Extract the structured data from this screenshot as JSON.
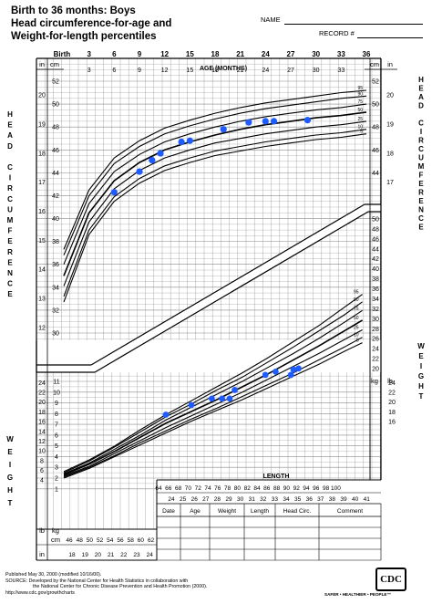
{
  "header": {
    "title_lines": [
      "Birth to 36 months: Boys",
      "Head circumference-for-age and",
      "Weight-for-length percentiles"
    ],
    "name_label": "NAME",
    "record_label": "RECORD #"
  },
  "axes": {
    "age_top_labels": [
      "Birth",
      "3",
      "6",
      "9",
      "12",
      "15",
      "18",
      "21",
      "24",
      "27",
      "30",
      "33",
      "36"
    ],
    "age_inner_labels": [
      "3",
      "6",
      "9",
      "12",
      "15",
      "18",
      "21",
      "24",
      "27",
      "30",
      "33"
    ],
    "age_title": "AGE (MONTHS)",
    "hc_cm_labels": [
      "52",
      "50",
      "48",
      "46",
      "44",
      "42",
      "40",
      "38",
      "36",
      "34",
      "32",
      "30"
    ],
    "hc_in_labels": [
      "20",
      "19",
      "18",
      "17",
      "16",
      "15",
      "14",
      "13",
      "12"
    ],
    "hc_right_cm_labels": [
      "52",
      "50",
      "48",
      "46",
      "44"
    ],
    "hc_right_in_labels": [
      "20",
      "19",
      "18",
      "17"
    ],
    "wt_right_kg_labels": [
      "50",
      "48",
      "46",
      "44",
      "42",
      "40",
      "38",
      "36",
      "34",
      "32",
      "30",
      "28",
      "26",
      "24",
      "22",
      "20"
    ],
    "wt_right_lb_labels": [
      "24",
      "22",
      "20",
      "18",
      "16"
    ],
    "wt_kg_labels": [
      "11",
      "10",
      "9",
      "8",
      "7",
      "6",
      "5",
      "4",
      "3",
      "2",
      "1"
    ],
    "wt_lb_labels": [
      "24",
      "22",
      "20",
      "18",
      "16",
      "14",
      "12",
      "10",
      "8",
      "6",
      "4"
    ],
    "length_cm_labels": [
      "64",
      "66",
      "68",
      "70",
      "72",
      "74",
      "76",
      "78",
      "80",
      "82",
      "84",
      "86",
      "88",
      "90",
      "92",
      "94",
      "96",
      "98",
      "100"
    ],
    "length_in_labels": [
      "24",
      "25",
      "26",
      "27",
      "28",
      "29",
      "30",
      "31",
      "32",
      "33",
      "34",
      "35",
      "36",
      "37",
      "38",
      "39",
      "40",
      "41"
    ],
    "length_title": "LENGTH",
    "bottom_cm_labels": [
      "46",
      "48",
      "50",
      "52",
      "54",
      "56",
      "58",
      "60",
      "62"
    ],
    "bottom_in_labels": [
      "18",
      "19",
      "20",
      "21",
      "22",
      "23",
      "24"
    ],
    "unit_in": "in",
    "unit_cm": "cm",
    "unit_kg": "kg",
    "unit_lb": "lb",
    "side_hc_left": "HEAD CIRCUMFERENCE",
    "side_hc_right": "HEAD CIRCUMFERENCE",
    "side_wt_left": "WEIGHT",
    "side_wt_right": "WEIGHT"
  },
  "table": {
    "headers": [
      "Date",
      "Age",
      "Weight",
      "Length",
      "Head Circ.",
      "Comment"
    ]
  },
  "footer": {
    "lines": [
      "Published May 30, 2000 (modified 10/16/00).",
      "SOURCE: Developed by the National Center for Health Statistics in collaboration with",
      "the National Center for Chronic Disease Prevention and Health Promotion (2000).",
      "http://www.cdc.gov/growthcharts"
    ],
    "logo_text": "CDC",
    "tagline": "SAFER • HEALTHIER • PEOPLE™"
  },
  "colors": {
    "point": "#1f5cff",
    "grid": "#8a8a8a",
    "curve": "#000000"
  },
  "chart_data": [
    {
      "type": "line",
      "title": "Head circumference-for-age",
      "xlabel": "AGE (MONTHS)",
      "ylabel": "HEAD CIRCUMFERENCE",
      "xlim": [
        0,
        36
      ],
      "ylim": [
        30,
        53
      ],
      "x": [
        0,
        3,
        6,
        9,
        12,
        15,
        18,
        21,
        24,
        27,
        30,
        33,
        36
      ],
      "series": [
        {
          "name": "95",
          "values": [
            37.3,
            42.5,
            45.3,
            46.8,
            47.9,
            48.6,
            49.2,
            49.7,
            50.1,
            50.4,
            50.7,
            51.0,
            51.2
          ]
        },
        {
          "name": "90",
          "values": [
            36.8,
            42.0,
            44.8,
            46.3,
            47.4,
            48.1,
            48.7,
            49.2,
            49.6,
            49.9,
            50.2,
            50.5,
            50.7
          ]
        },
        {
          "name": "75",
          "values": [
            36.0,
            41.3,
            44.1,
            45.6,
            46.7,
            47.4,
            48.0,
            48.5,
            48.9,
            49.2,
            49.5,
            49.7,
            50.0
          ]
        },
        {
          "name": "50",
          "values": [
            35.0,
            40.5,
            43.3,
            44.9,
            46.0,
            46.7,
            47.3,
            47.8,
            48.2,
            48.5,
            48.8,
            49.0,
            49.3
          ]
        },
        {
          "name": "25",
          "values": [
            34.1,
            39.7,
            42.6,
            44.2,
            45.3,
            46.0,
            46.6,
            47.0,
            47.4,
            47.7,
            48.0,
            48.2,
            48.5
          ]
        },
        {
          "name": "10",
          "values": [
            33.2,
            39.0,
            41.9,
            43.5,
            44.6,
            45.3,
            45.9,
            46.3,
            46.7,
            47.0,
            47.3,
            47.5,
            47.8
          ]
        },
        {
          "name": "5",
          "values": [
            32.7,
            38.6,
            41.5,
            43.1,
            44.2,
            44.9,
            45.5,
            45.9,
            46.3,
            46.6,
            46.9,
            47.1,
            47.4
          ]
        }
      ],
      "points": [
        {
          "x": 6,
          "y": 42.3
        },
        {
          "x": 9,
          "y": 44.1
        },
        {
          "x": 10.5,
          "y": 45.1
        },
        {
          "x": 11.5,
          "y": 45.7
        },
        {
          "x": 14,
          "y": 46.7
        },
        {
          "x": 15,
          "y": 46.8
        },
        {
          "x": 19,
          "y": 47.8
        },
        {
          "x": 22,
          "y": 48.4
        },
        {
          "x": 24,
          "y": 48.5
        },
        {
          "x": 25,
          "y": 48.5
        },
        {
          "x": 29,
          "y": 48.6
        }
      ]
    },
    {
      "type": "line",
      "title": "Weight-for-length",
      "xlabel": "LENGTH",
      "ylabel": "WEIGHT",
      "xlim": [
        45,
        103.5
      ],
      "ylim": [
        1.2,
        26
      ],
      "x": [
        45,
        50,
        55,
        60,
        65,
        70,
        75,
        80,
        85,
        90,
        95,
        100,
        103.5
      ],
      "series": [
        {
          "name": "95",
          "values": [
            2.6,
            3.7,
            5.0,
            6.5,
            7.9,
            9.2,
            10.5,
            11.8,
            13.2,
            14.7,
            16.2,
            17.9,
            19.1
          ]
        },
        {
          "name": "90",
          "values": [
            2.5,
            3.6,
            4.9,
            6.3,
            7.7,
            8.9,
            10.2,
            11.4,
            12.8,
            14.2,
            15.7,
            17.2,
            18.4
          ]
        },
        {
          "name": "75",
          "values": [
            2.4,
            3.4,
            4.7,
            6.0,
            7.4,
            8.6,
            9.8,
            11.0,
            12.3,
            13.6,
            15.0,
            16.5,
            17.6
          ]
        },
        {
          "name": "50",
          "values": [
            2.3,
            3.3,
            4.5,
            5.8,
            7.1,
            8.2,
            9.3,
            10.5,
            11.7,
            13.0,
            14.3,
            15.7,
            16.7
          ]
        },
        {
          "name": "25",
          "values": [
            2.2,
            3.1,
            4.3,
            5.5,
            6.7,
            7.8,
            8.9,
            10.0,
            11.2,
            12.4,
            13.6,
            14.9,
            15.8
          ]
        },
        {
          "name": "10",
          "values": [
            2.1,
            3.0,
            4.1,
            5.3,
            6.4,
            7.5,
            8.5,
            9.6,
            10.7,
            11.8,
            13.0,
            14.2,
            15.1
          ]
        },
        {
          "name": "5",
          "values": [
            2.0,
            2.9,
            4.0,
            5.1,
            6.2,
            7.3,
            8.3,
            9.3,
            10.4,
            11.5,
            12.6,
            13.8,
            14.6
          ]
        }
      ],
      "points": [
        {
          "x": 65,
          "y": 7.9
        },
        {
          "x": 70,
          "y": 8.8
        },
        {
          "x": 74,
          "y": 9.4
        },
        {
          "x": 76,
          "y": 9.4
        },
        {
          "x": 77.5,
          "y": 9.4
        },
        {
          "x": 78.5,
          "y": 10.2
        },
        {
          "x": 84.5,
          "y": 11.6
        },
        {
          "x": 86.5,
          "y": 11.9
        },
        {
          "x": 89.5,
          "y": 11.6
        },
        {
          "x": 90,
          "y": 12.1
        },
        {
          "x": 91,
          "y": 12.2
        }
      ]
    }
  ]
}
